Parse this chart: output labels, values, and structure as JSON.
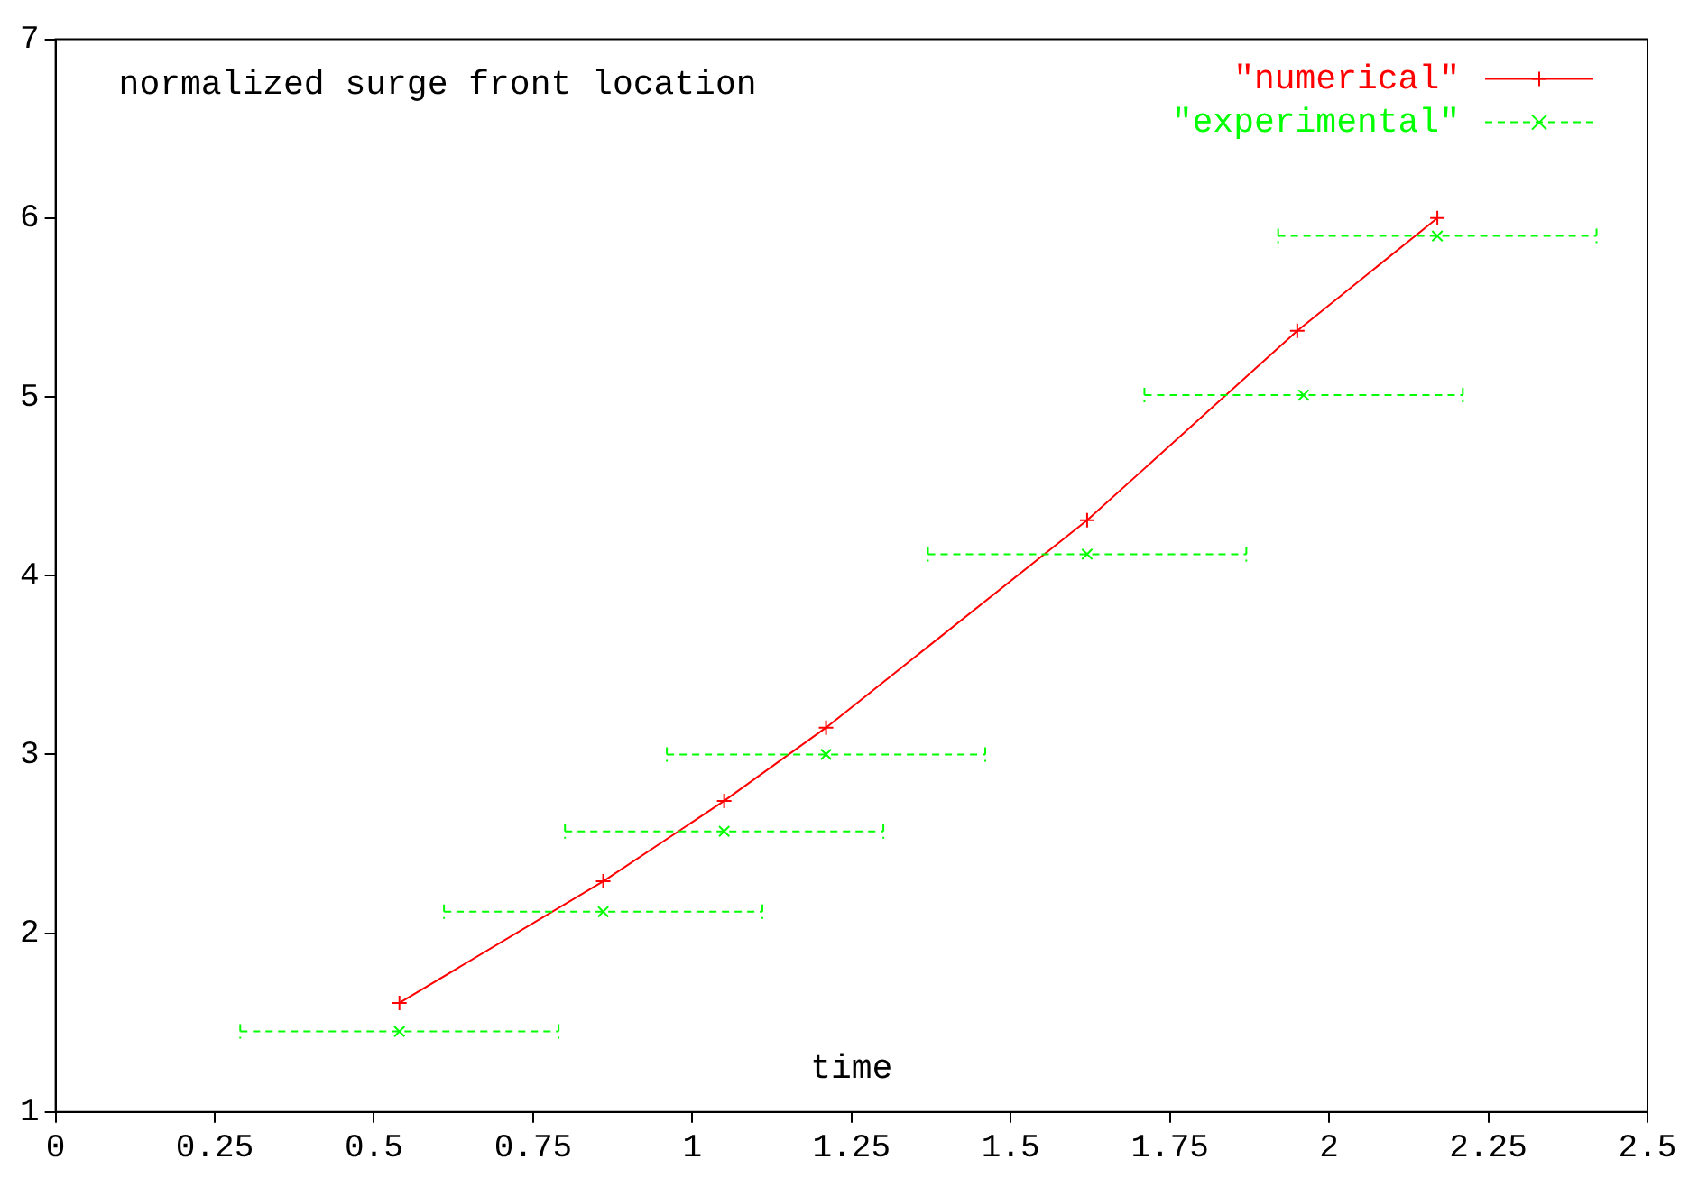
{
  "chart_data": {
    "type": "line",
    "title": "normalized surge front location",
    "xlabel": "time",
    "xlim": [
      0,
      2.5
    ],
    "xticks": [
      0,
      0.25,
      0.5,
      0.75,
      1,
      1.25,
      1.5,
      1.75,
      2,
      2.25,
      2.5
    ],
    "ylim": [
      1,
      7
    ],
    "yticks": [
      1,
      2,
      3,
      4,
      5,
      6,
      7
    ],
    "grid": false,
    "legend": "top right",
    "series": [
      {
        "name": "\"numerical\"",
        "color": "#ff0000",
        "marker": "cross",
        "line_style": "solid",
        "x": [
          0.54,
          0.86,
          1.05,
          1.21,
          1.62,
          1.95,
          2.17
        ],
        "values": [
          1.61,
          2.29,
          2.74,
          3.15,
          4.31,
          5.37,
          6.0
        ]
      },
      {
        "name": "\"experimental\"",
        "color": "#00ff00",
        "type": "scatter",
        "marker": "cross",
        "line_style": "dashed",
        "x": [
          0.54,
          0.86,
          1.05,
          1.21,
          1.62,
          1.96,
          2.17
        ],
        "values": [
          1.45,
          2.12,
          2.57,
          3.0,
          4.12,
          5.01,
          5.9
        ],
        "xerrors": [
          0.25,
          0.25,
          0.25,
          0.25,
          0.25,
          0.25,
          0.25
        ]
      }
    ]
  }
}
